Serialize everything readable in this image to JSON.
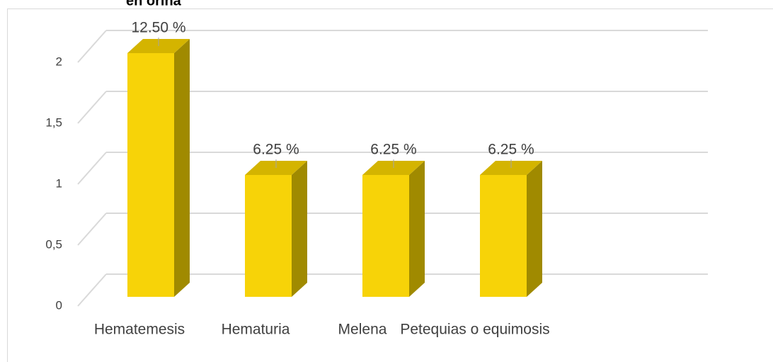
{
  "chart_data": {
    "type": "bar3d",
    "title": "en orina",
    "categories": [
      "Hematemesis",
      "Hematuria",
      "Melena",
      "Petequias o equimosis"
    ],
    "values": [
      2,
      1,
      1,
      1
    ],
    "value_labels": [
      "12.50 %",
      "6.25 %",
      "6.25 %",
      "6.25 %"
    ],
    "color": "#f7d308",
    "ylim": [
      0,
      2
    ],
    "yticks": [
      0,
      {
        "value": 0.5,
        "label": "0,5"
      },
      1,
      {
        "value": 1.5,
        "label": "1,5"
      },
      2
    ],
    "grid": true
  }
}
